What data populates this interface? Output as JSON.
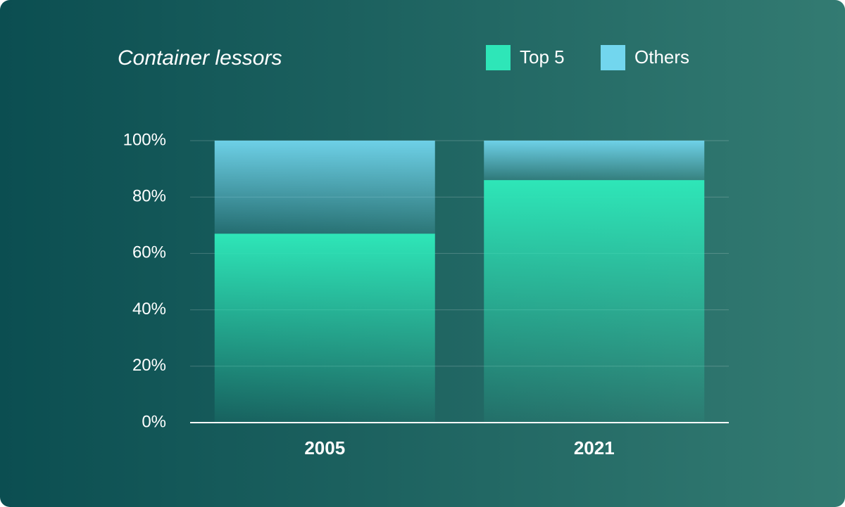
{
  "chart_data": {
    "type": "stacked_bar",
    "title": "Container lessors",
    "categories": [
      "2005",
      "2021"
    ],
    "series": [
      {
        "name": "Top 5",
        "color": "#2ee6b8",
        "values": [
          67,
          86
        ]
      },
      {
        "name": "Others",
        "color": "#72d6ee",
        "values": [
          33,
          14
        ]
      }
    ],
    "ylim": [
      0,
      100
    ],
    "yticks": [
      {
        "value": 0,
        "label": "0%"
      },
      {
        "value": 20,
        "label": "20%"
      },
      {
        "value": 40,
        "label": "40%"
      },
      {
        "value": 60,
        "label": "60%"
      },
      {
        "value": 80,
        "label": "80%"
      },
      {
        "value": 100,
        "label": "100%"
      }
    ],
    "grid": true
  }
}
